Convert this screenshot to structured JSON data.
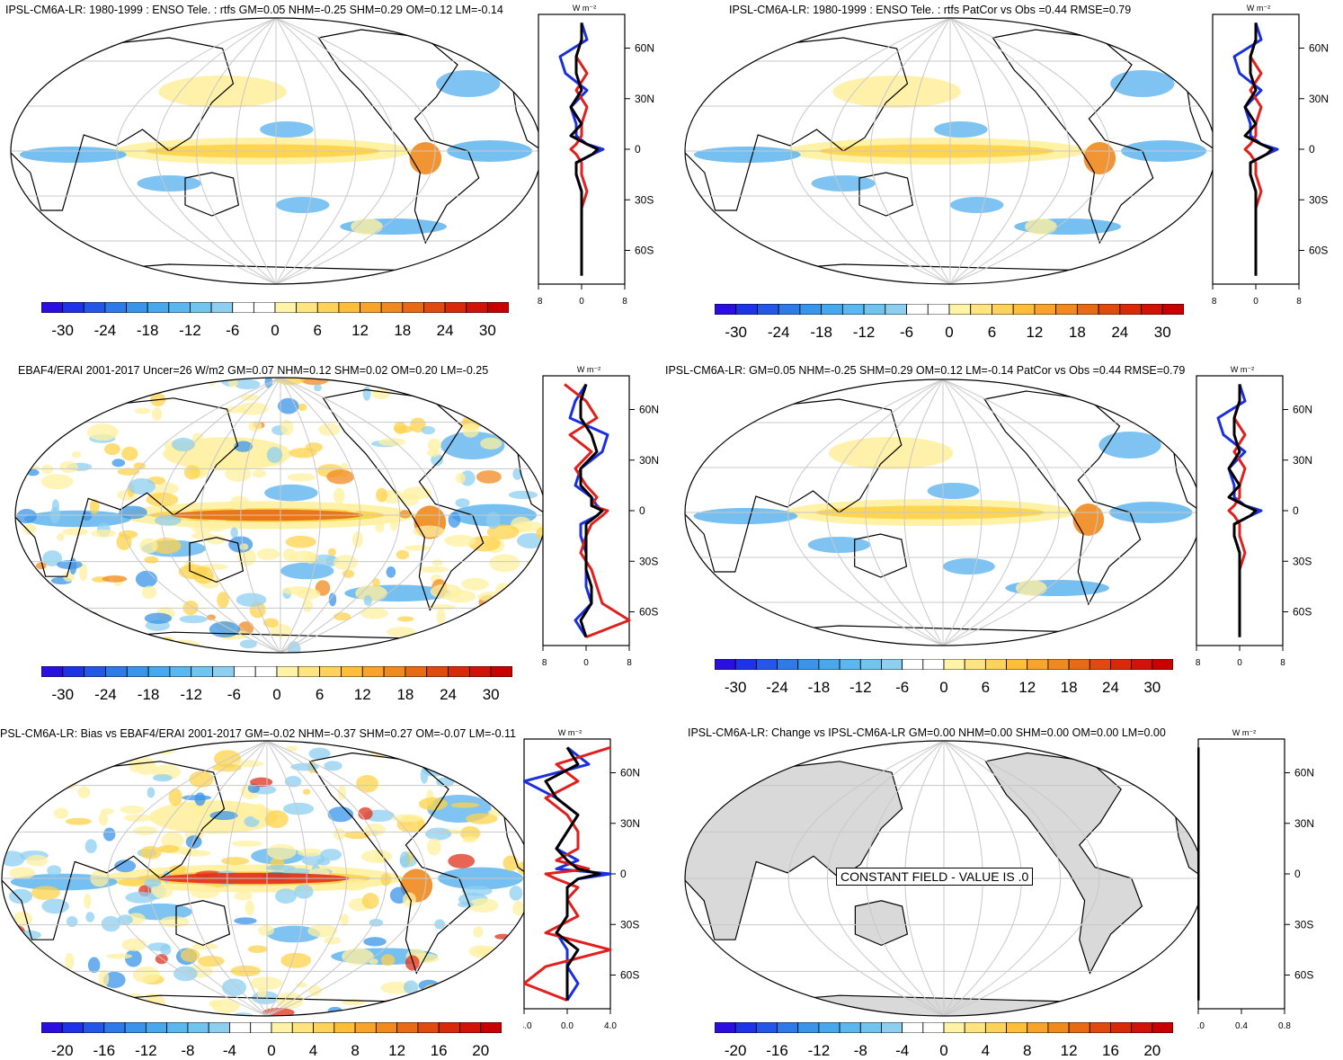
{
  "unit_label": "W m⁻²",
  "colors": {
    "land_gray": "#d9d9d9",
    "grid": "#c8c8c8",
    "positive": "#f0a000",
    "negative": "#3a8fe0",
    "profile_red": "#e0201c",
    "profile_blue": "#1a2fe0",
    "profile_black": "#000000"
  },
  "panels": [
    {
      "id": "p1",
      "title": "IPSL-CM6A-LR: 1980-1999 : ENSO Tele. : rtfs GM=0.05 NHM=-0.25 SHM=0.29 OM=0.12 LM=-0.14",
      "lat_labels": [
        "60N",
        "30N",
        "0",
        "30S",
        "60S"
      ],
      "xticks": [
        "-8",
        "0",
        "8"
      ],
      "colorbar_labels": [
        "-30",
        "-24",
        "-18",
        "-12",
        "-6",
        "0",
        "6",
        "12",
        "18",
        "24",
        "30"
      ]
    },
    {
      "id": "p2",
      "title": "IPSL-CM6A-LR: 1980-1999 : ENSO Tele. : rtfs PatCor vs Obs =0.44 RMSE=0.79",
      "lat_labels": [
        "60N",
        "30N",
        "0",
        "30S",
        "60S"
      ],
      "xticks": [
        "-8",
        "0",
        "8"
      ],
      "colorbar_labels": [
        "-30",
        "-24",
        "-18",
        "-12",
        "-6",
        "0",
        "6",
        "12",
        "18",
        "24",
        "30"
      ]
    },
    {
      "id": "p3",
      "title": "EBAF4/ERAI 2001-2017 Uncer=26 W/m2 GM=0.07 NHM=0.12 SHM=0.02 OM=0.20 LM=-0.25",
      "lat_labels": [
        "60N",
        "30N",
        "0",
        "30S",
        "60S"
      ],
      "xticks": [
        "-8",
        "0",
        "8"
      ],
      "colorbar_labels": [
        "-30",
        "-24",
        "-18",
        "-12",
        "-6",
        "0",
        "6",
        "12",
        "18",
        "24",
        "30"
      ]
    },
    {
      "id": "p4",
      "title": "IPSL-CM6A-LR: GM=0.05 NHM=-0.25 SHM=0.29 OM=0.12 LM=-0.14 PatCor vs Obs =0.44 RMSE=0.79",
      "lat_labels": [
        "60N",
        "30N",
        "0",
        "30S",
        "60S"
      ],
      "xticks": [
        "-8",
        "0",
        "8"
      ],
      "colorbar_labels": [
        "-30",
        "-24",
        "-18",
        "-12",
        "-6",
        "0",
        "6",
        "12",
        "18",
        "24",
        "30"
      ]
    },
    {
      "id": "p5",
      "title": "PSL-CM6A-LR: Bias vs EBAF4/ERAI 2001-2017 GM=-0.02 NHM=-0.37 SHM=0.27 OM=-0.07 LM=-0.11",
      "lat_labels": [
        "60N",
        "30N",
        "0",
        "30S",
        "60S"
      ],
      "xticks": [
        "-4.0",
        "0.0",
        "4.0"
      ],
      "colorbar_labels": [
        "-20",
        "-16",
        "-12",
        "-8",
        "-4",
        "0",
        "4",
        "8",
        "12",
        "16",
        "20"
      ]
    },
    {
      "id": "p6",
      "title": "IPSL-CM6A-LR: Change vs IPSL-CM6A-LR GM=0.00 NHM=0.00 SHM=0.00 OM=0.00 LM=0.00",
      "lat_labels": [
        "60N",
        "30N",
        "0",
        "30S",
        "60S"
      ],
      "xticks": [
        "0.0",
        "0.4",
        "0.8"
      ],
      "colorbar_labels": [
        "-20",
        "-16",
        "-12",
        "-8",
        "-4",
        "0",
        "4",
        "8",
        "12",
        "16",
        "20"
      ],
      "note": "CONSTANT FIELD - VALUE IS .0"
    }
  ],
  "chart_data": {
    "type": "map_panels_with_zonal_profiles",
    "description_values": {
      "latitude_axis": [
        60,
        30,
        0,
        -30,
        -60
      ],
      "profile_xlim_p1_to_p4": [
        -8,
        8
      ],
      "profile_xlim_p5": [
        -4.0,
        4.0
      ],
      "profile_xlim_p6": [
        0.0,
        0.8
      ],
      "colorbar_range_p1_to_p4": [
        -30,
        30
      ],
      "colorbar_range_p5_p6": [
        -20,
        20
      ],
      "colorbar_segments": 22
    },
    "zonal_profiles": {
      "lat": [
        75,
        65,
        55,
        45,
        35,
        25,
        15,
        8,
        3,
        0,
        -3,
        -8,
        -15,
        -25,
        -35,
        -45,
        -55,
        -65,
        -75
      ],
      "p1": {
        "blue": [
          0,
          1,
          -4,
          -3,
          1,
          -2,
          -1,
          -1,
          1,
          4,
          2,
          -1,
          -1,
          0,
          0,
          0,
          0,
          0,
          0
        ],
        "red": [
          0,
          0,
          -1,
          1,
          -1,
          1,
          0,
          0,
          -1,
          -2,
          -1,
          0,
          0,
          1,
          0,
          0,
          0,
          0,
          0
        ],
        "black": [
          0,
          0,
          -1,
          -1,
          0,
          -2,
          0,
          -2,
          1,
          3,
          2,
          -1,
          -1,
          0,
          0,
          0,
          0,
          0,
          0
        ]
      },
      "p2": {
        "blue": [
          0,
          1,
          -4,
          -3,
          1,
          -2,
          -1,
          -1,
          1,
          4,
          2,
          -1,
          -1,
          0,
          0,
          0,
          0,
          0,
          0
        ],
        "red": [
          0,
          0,
          -1,
          1,
          -1,
          1,
          0,
          0,
          -1,
          -2,
          -1,
          0,
          0,
          1,
          0,
          0,
          0,
          0,
          0
        ],
        "black": [
          0,
          0,
          -1,
          -1,
          0,
          -2,
          0,
          -2,
          1,
          3,
          2,
          -1,
          -1,
          0,
          0,
          0,
          0,
          0,
          0
        ]
      },
      "p3": {
        "blue": [
          0,
          -2,
          -3,
          4,
          3,
          -1,
          -2,
          1,
          2,
          3,
          2,
          -1,
          -1,
          0,
          0,
          0,
          1,
          -2,
          0
        ],
        "red": [
          -4,
          0,
          2,
          -3,
          1,
          -2,
          0,
          2,
          1,
          4,
          3,
          1,
          0,
          -1,
          1,
          2,
          3,
          8,
          0
        ],
        "black": [
          0,
          -1,
          -1,
          1,
          2,
          -1,
          -1,
          1,
          1,
          3,
          2,
          0,
          0,
          0,
          0,
          1,
          1,
          -1,
          0
        ]
      },
      "p4": {
        "blue": [
          0,
          1,
          -4,
          -3,
          1,
          -2,
          -1,
          -1,
          1,
          4,
          2,
          -1,
          -1,
          0,
          0,
          0,
          0,
          0,
          0
        ],
        "red": [
          0,
          0,
          -1,
          1,
          -1,
          1,
          0,
          0,
          -1,
          -2,
          -1,
          0,
          0,
          1,
          0,
          0,
          0,
          0,
          0
        ],
        "black": [
          0,
          0,
          -1,
          -1,
          0,
          -2,
          0,
          -2,
          1,
          3,
          2,
          -1,
          -1,
          0,
          0,
          0,
          0,
          0,
          0
        ]
      },
      "p5": {
        "blue": [
          0,
          2,
          -4,
          -1,
          1,
          0,
          -1,
          1,
          -1,
          4,
          1,
          0,
          0,
          0,
          -1,
          0,
          0,
          1,
          0
        ],
        "red": [
          4,
          -1,
          1,
          -2,
          0,
          1,
          1,
          -1,
          2,
          -2,
          -1,
          1,
          0,
          1,
          -2,
          4,
          -2,
          -4,
          0
        ],
        "black": [
          0,
          1,
          -2,
          -1,
          1,
          0,
          -1,
          0,
          1,
          3,
          1,
          0,
          0,
          0,
          -1,
          1,
          0,
          0,
          0
        ]
      },
      "p6": {
        "blue": [
          0,
          0,
          0,
          0,
          0,
          0,
          0,
          0,
          0,
          0,
          0,
          0,
          0,
          0,
          0,
          0,
          0,
          0,
          0
        ],
        "red": [
          0,
          0,
          0,
          0,
          0,
          0,
          0,
          0,
          0,
          0,
          0,
          0,
          0,
          0,
          0,
          0,
          0,
          0,
          0
        ],
        "black": [
          0,
          0,
          0,
          0,
          0,
          0,
          0,
          0,
          0,
          0,
          0,
          0,
          0,
          0,
          0,
          0,
          0,
          0,
          0
        ]
      }
    }
  }
}
